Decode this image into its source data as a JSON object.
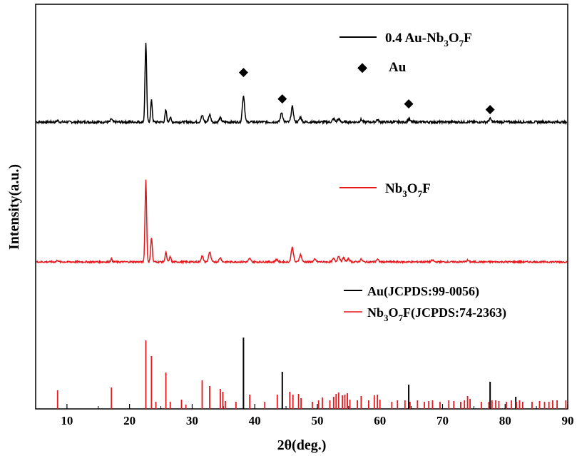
{
  "chart_data": {
    "type": "line",
    "xlabel": "2θ(deg.)",
    "ylabel": "Intensity(a.u.)",
    "xlim": [
      5,
      90
    ],
    "x_ticks": [
      10,
      20,
      30,
      40,
      50,
      60,
      70,
      80,
      90
    ],
    "grid": false,
    "colors": {
      "black": "#000000",
      "red": "#e8171b"
    },
    "series": [
      {
        "name": "0.4 Au-Nb3O7F",
        "legend_parts": [
          "0.4 Au-Nb",
          "3",
          "O",
          "7",
          "F"
        ],
        "color": "#000000",
        "peaks": [
          [
            8.5,
            0.02
          ],
          [
            17.1,
            0.04
          ],
          [
            22.6,
            1.0
          ],
          [
            23.5,
            0.27
          ],
          [
            25.8,
            0.15
          ],
          [
            26.5,
            0.06
          ],
          [
            31.6,
            0.08
          ],
          [
            32.8,
            0.09
          ],
          [
            34.5,
            0.05
          ],
          [
            38.2,
            0.33
          ],
          [
            44.3,
            0.12
          ],
          [
            46.0,
            0.19
          ],
          [
            47.3,
            0.06
          ],
          [
            52.6,
            0.04
          ],
          [
            53.4,
            0.04
          ],
          [
            57.0,
            0.03
          ],
          [
            59.6,
            0.03
          ],
          [
            64.6,
            0.04
          ],
          [
            77.6,
            0.04
          ]
        ]
      },
      {
        "name": "Nb3O7F",
        "legend_parts": [
          "Nb",
          "3",
          "O",
          "7",
          "F"
        ],
        "color": "#e8171b",
        "peaks": [
          [
            8.5,
            0.02
          ],
          [
            17.1,
            0.04
          ],
          [
            22.6,
            1.0
          ],
          [
            23.5,
            0.3
          ],
          [
            25.8,
            0.12
          ],
          [
            26.5,
            0.06
          ],
          [
            31.6,
            0.07
          ],
          [
            32.8,
            0.12
          ],
          [
            34.5,
            0.05
          ],
          [
            39.2,
            0.04
          ],
          [
            43.5,
            0.03
          ],
          [
            46.0,
            0.18
          ],
          [
            47.3,
            0.09
          ],
          [
            49.6,
            0.03
          ],
          [
            52.6,
            0.04
          ],
          [
            53.4,
            0.07
          ],
          [
            54.2,
            0.05
          ],
          [
            55.0,
            0.04
          ],
          [
            57.0,
            0.03
          ],
          [
            59.6,
            0.03
          ],
          [
            68.4,
            0.02
          ],
          [
            74.0,
            0.02
          ]
        ]
      }
    ],
    "au_marker_label": "Au",
    "au_marker_symbol": "◆",
    "au_marker_positions": [
      38.2,
      44.4,
      64.6,
      77.6
    ],
    "reference_legend": [
      {
        "label": "Au(JCPDS:99-0056)",
        "color": "#000000"
      },
      {
        "label_parts": [
          "Nb",
          "3",
          "O",
          "7",
          "F(JCPDS:74-2363)"
        ],
        "color": "#e8171b"
      }
    ],
    "reference_au": {
      "name": "Au(JCPDS:99-0056)",
      "positions": [
        38.2,
        44.4,
        64.6,
        77.6,
        81.7
      ],
      "intensities": [
        1.0,
        0.52,
        0.34,
        0.38,
        0.17
      ]
    },
    "reference_nb3o7f": {
      "name": "Nb3O7F(JCPDS:74-2363)",
      "positions": [
        8.5,
        17.1,
        22.6,
        23.5,
        24.2,
        25.8,
        26.5,
        28.3,
        29.0,
        31.6,
        32.8,
        34.5,
        34.9,
        35.3,
        37.0,
        39.2,
        41.6,
        43.6,
        45.6,
        46.1,
        47.0,
        47.4,
        49.2,
        50.2,
        50.8,
        52.0,
        52.6,
        53.0,
        53.4,
        54.0,
        54.4,
        54.8,
        55.2,
        56.4,
        57.0,
        58.2,
        59.1,
        59.6,
        60.0,
        61.9,
        62.8,
        64.0,
        64.8,
        66.0,
        67.1,
        67.8,
        68.4,
        69.6,
        71.0,
        71.8,
        72.9,
        73.5,
        74.0,
        74.4,
        76.2,
        77.4,
        77.9,
        78.5,
        79.0,
        80.2,
        81.0,
        81.8,
        82.3,
        82.8,
        84.3,
        85.5,
        86.3,
        87.0,
        87.6,
        88.3,
        89.7
      ],
      "intensities": [
        0.26,
        0.3,
        0.96,
        0.74,
        0.1,
        0.51,
        0.1,
        0.13,
        0.06,
        0.4,
        0.32,
        0.28,
        0.24,
        0.11,
        0.1,
        0.2,
        0.1,
        0.2,
        0.24,
        0.2,
        0.21,
        0.15,
        0.1,
        0.12,
        0.16,
        0.12,
        0.17,
        0.21,
        0.23,
        0.19,
        0.2,
        0.22,
        0.13,
        0.12,
        0.18,
        0.12,
        0.19,
        0.2,
        0.13,
        0.1,
        0.12,
        0.12,
        0.1,
        0.12,
        0.1,
        0.11,
        0.12,
        0.1,
        0.12,
        0.11,
        0.1,
        0.12,
        0.18,
        0.14,
        0.1,
        0.1,
        0.12,
        0.12,
        0.11,
        0.1,
        0.12,
        0.1,
        0.12,
        0.1,
        0.1,
        0.11,
        0.1,
        0.1,
        0.12,
        0.12,
        0.12
      ]
    }
  }
}
